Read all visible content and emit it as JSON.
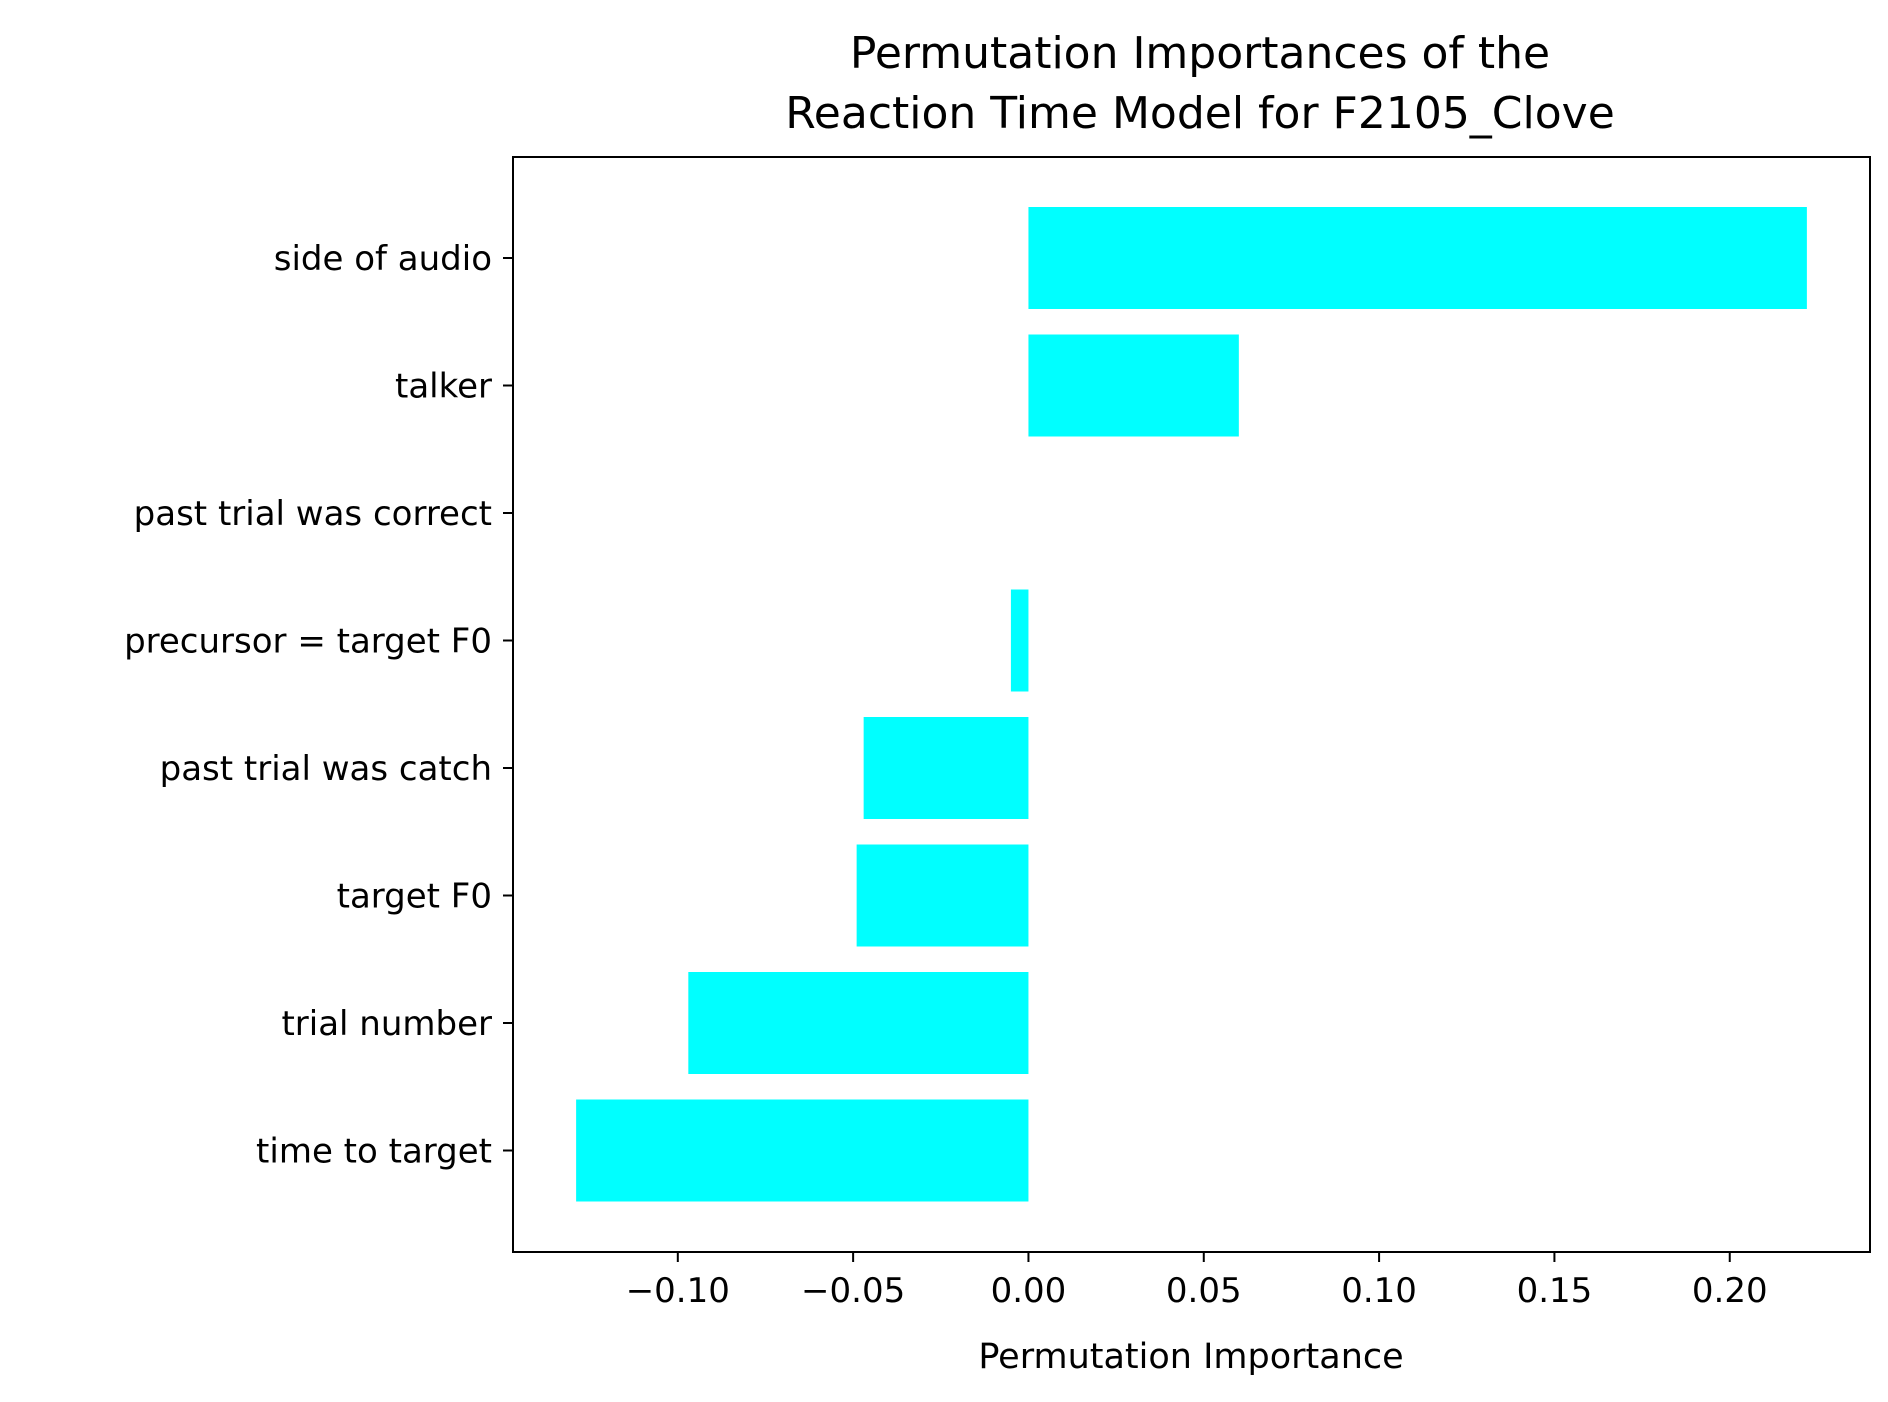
{
  "chart_data": {
    "type": "bar",
    "orientation": "horizontal",
    "title_lines": [
      "Permutation Importances of the",
      "Reaction Time Model for F2105_Clove"
    ],
    "xlabel": "Permutation Importance",
    "ylabel": "",
    "categories": [
      "side of audio",
      "talker",
      "past trial was correct",
      "precursor = target F0",
      "past trial was catch",
      "target F0",
      "trial number",
      "time to target"
    ],
    "values": [
      0.222,
      0.06,
      0.0,
      -0.005,
      -0.047,
      -0.049,
      -0.097,
      -0.129
    ],
    "xlim": [
      -0.147,
      0.24
    ],
    "xticks": [
      -0.1,
      -0.05,
      0.0,
      0.05,
      0.1,
      0.15,
      0.2
    ],
    "xtick_labels": [
      "−0.10",
      "−0.05",
      "0.00",
      "0.05",
      "0.10",
      "0.15",
      "0.20"
    ],
    "bar_color": "#00ffff",
    "grid": false,
    "legend": "none"
  }
}
